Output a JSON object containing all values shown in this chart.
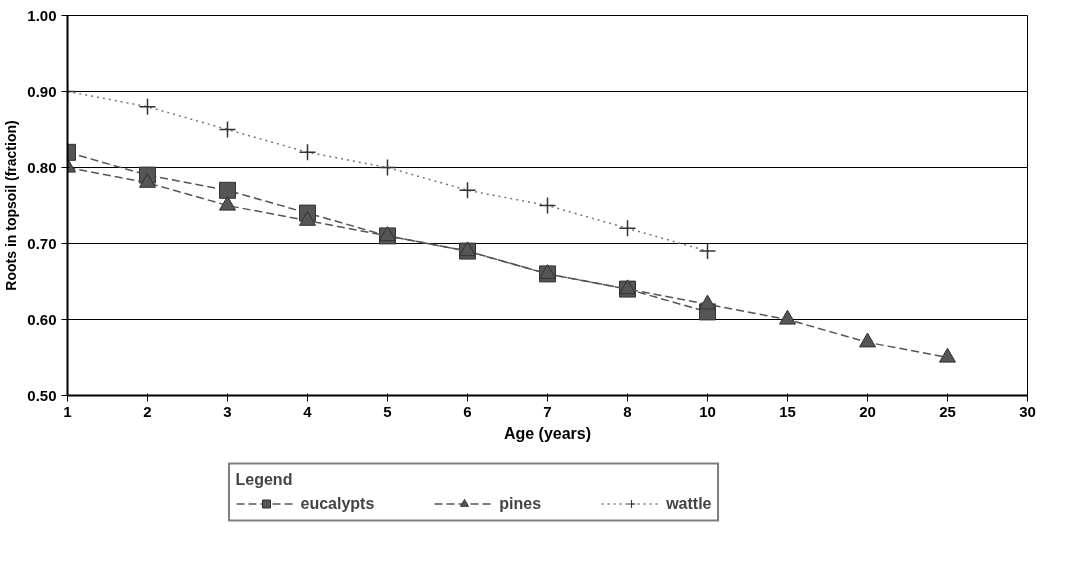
{
  "chart_data": {
    "type": "line",
    "xlabel": "Age (years)",
    "ylabel": "Roots in topsoil (fraction)",
    "legend_title": "Legend",
    "categories": [
      "1",
      "2",
      "3",
      "4",
      "5",
      "6",
      "7",
      "8",
      "10",
      "15",
      "20",
      "25",
      "30"
    ],
    "ylim": [
      0.5,
      1.0
    ],
    "yticks": [
      {
        "value": 0.5,
        "label": "0.50"
      },
      {
        "value": 0.6,
        "label": "0.60"
      },
      {
        "value": 0.7,
        "label": "0.70"
      },
      {
        "value": 0.8,
        "label": "0.80"
      },
      {
        "value": 0.9,
        "label": "0.90"
      },
      {
        "value": 1.0,
        "label": "1.00"
      }
    ],
    "grid": "y",
    "legend": "bottom",
    "series": [
      {
        "name": "eucalypts",
        "color": "#555555",
        "marker": "square",
        "line_style": "dashed",
        "values": [
          0.82,
          0.79,
          0.77,
          0.74,
          0.71,
          0.69,
          0.66,
          0.64,
          0.61,
          null,
          null,
          null,
          null
        ]
      },
      {
        "name": "pines",
        "color": "#555555",
        "marker": "triangle",
        "line_style": "dashed",
        "values": [
          0.8,
          0.78,
          0.75,
          0.73,
          0.71,
          0.69,
          0.66,
          0.64,
          0.62,
          0.6,
          0.57,
          0.55,
          null
        ]
      },
      {
        "name": "wattle",
        "color": "#777777",
        "marker": "cross",
        "line_style": "dotted",
        "values": [
          0.9,
          0.88,
          0.85,
          0.82,
          0.8,
          0.77,
          0.75,
          0.72,
          0.69,
          null,
          null,
          null,
          null
        ]
      }
    ]
  }
}
